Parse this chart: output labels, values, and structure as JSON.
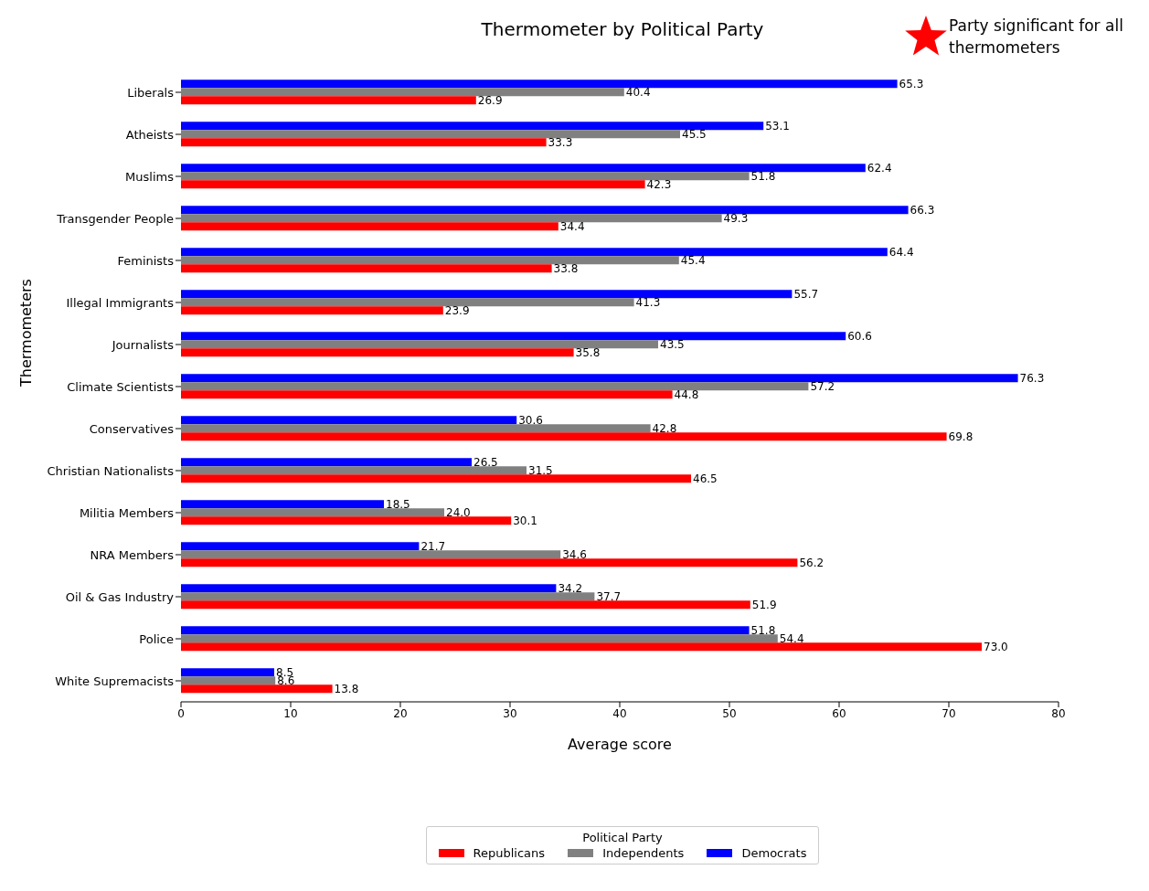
{
  "chart_data": {
    "type": "bar",
    "orientation": "horizontal",
    "title": "Thermometer by Political Party",
    "xlabel": "Average score",
    "ylabel": "Thermometers",
    "legend_title": "Political Party",
    "legend": "bottom",
    "grid": false,
    "categories": [
      "Liberals",
      "Atheists",
      "Muslims",
      "Transgender People",
      "Feminists",
      "Illegal Immigrants",
      "Journalists",
      "Climate Scientists",
      "Conservatives",
      "Christian Nationalists",
      "Militia Members",
      "NRA Members",
      "Oil & Gas Industry",
      "Police",
      "White Supremacists"
    ],
    "series": [
      {
        "name": "Republicans",
        "color": "#ff0000",
        "values": [
          26.9,
          33.3,
          42.3,
          34.4,
          33.8,
          23.9,
          35.8,
          44.8,
          69.8,
          46.5,
          30.1,
          56.2,
          51.9,
          73,
          13.8
        ],
        "value_labels": [
          "26.9",
          "33.3",
          "42.3",
          "34.4",
          "33.8",
          "23.9",
          "35.8",
          "44.8",
          "69.8",
          "46.5",
          "30.1",
          "56.2",
          "51.9",
          "73.0",
          "13.8"
        ]
      },
      {
        "name": "Independents",
        "color": "#808080",
        "values": [
          40.4,
          45.5,
          51.8,
          49.3,
          45.4,
          41.3,
          43.5,
          57.2,
          42.8,
          31.5,
          24,
          34.6,
          37.7,
          54.4,
          8.6
        ],
        "value_labels": [
          "40.4",
          "45.5",
          "51.8",
          "49.3",
          "45.4",
          "41.3",
          "43.5",
          "57.2",
          "42.8",
          "31.5",
          "24.0",
          "34.6",
          "37.7",
          "54.4",
          "8.6"
        ]
      },
      {
        "name": "Democrats",
        "color": "#0000ff",
        "values": [
          65.3,
          53.1,
          62.4,
          66.3,
          64.4,
          55.7,
          60.6,
          76.3,
          30.6,
          26.5,
          18.5,
          21.7,
          34.2,
          51.8,
          8.5
        ],
        "value_labels": [
          "65.3",
          "53.1",
          "62.4",
          "66.3",
          "64.4",
          "55.7",
          "60.6",
          "76.3",
          "30.6",
          "26.5",
          "18.5",
          "21.7",
          "34.2",
          "51.8",
          "8.5"
        ]
      }
    ],
    "xlim": [
      0,
      80
    ],
    "xticks": [
      0,
      10,
      20,
      30,
      40,
      50,
      60,
      70,
      80
    ],
    "annotations": [
      "Party significant for all thermometers"
    ]
  }
}
